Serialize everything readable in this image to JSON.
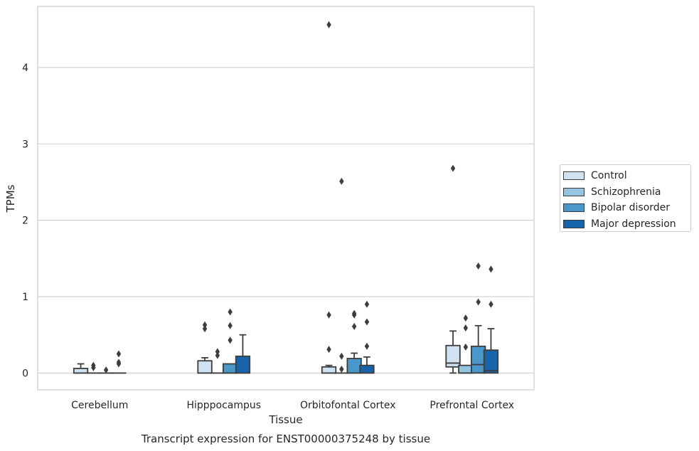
{
  "chart_data": {
    "type": "box",
    "title": "Transcript expression for ENST00000375248 by tissue",
    "xlabel": "Tissue",
    "ylabel": "TPMs",
    "categories": [
      "Cerebellum",
      "Hipppocampus",
      "Orbitofontal Cortex",
      "Prefrontal Cortex"
    ],
    "ylim": [
      -0.22,
      4.8
    ],
    "yticks": [
      0,
      1,
      2,
      3,
      4
    ],
    "grid": "horizontal",
    "legend_position": "right",
    "series": [
      {
        "name": "Control",
        "color": "#d0e1f2",
        "boxes": [
          {
            "q1": 0.0,
            "median": 0.0,
            "q3": 0.06,
            "whisker_low": 0.0,
            "whisker_high": 0.12,
            "outliers": []
          },
          {
            "q1": 0.0,
            "median": 0.0,
            "q3": 0.16,
            "whisker_low": 0.0,
            "whisker_high": 0.2,
            "outliers": [
              0.58,
              0.63
            ]
          },
          {
            "q1": 0.0,
            "median": 0.0,
            "q3": 0.08,
            "whisker_low": 0.0,
            "whisker_high": 0.1,
            "outliers": [
              0.31,
              0.76,
              4.56
            ]
          },
          {
            "q1": 0.08,
            "median": 0.13,
            "q3": 0.36,
            "whisker_low": 0.0,
            "whisker_high": 0.55,
            "outliers": [
              2.68
            ]
          }
        ]
      },
      {
        "name": "Schizophrenia",
        "color": "#94c4df",
        "boxes": [
          {
            "q1": 0.0,
            "median": 0.0,
            "q3": 0.0,
            "whisker_low": 0.0,
            "whisker_high": 0.0,
            "outliers": [
              0.07,
              0.1
            ]
          },
          {
            "q1": 0.0,
            "median": 0.0,
            "q3": 0.0,
            "whisker_low": 0.0,
            "whisker_high": 0.0,
            "outliers": [
              0.23,
              0.28
            ]
          },
          {
            "q1": 0.0,
            "median": 0.0,
            "q3": 0.0,
            "whisker_low": 0.0,
            "whisker_high": 0.0,
            "outliers": [
              0.05,
              0.22,
              2.51
            ]
          },
          {
            "q1": 0.0,
            "median": 0.0,
            "q3": 0.1,
            "whisker_low": 0.0,
            "whisker_high": 0.1,
            "outliers": [
              0.34,
              0.59,
              0.72
            ]
          }
        ]
      },
      {
        "name": "Bipolar disorder",
        "color": "#4a98c9",
        "boxes": [
          {
            "q1": 0.0,
            "median": 0.0,
            "q3": 0.0,
            "whisker_low": 0.0,
            "whisker_high": 0.0,
            "outliers": [
              0.04
            ]
          },
          {
            "q1": 0.0,
            "median": 0.0,
            "q3": 0.12,
            "whisker_low": 0.0,
            "whisker_high": 0.12,
            "outliers": [
              0.43,
              0.62,
              0.8
            ]
          },
          {
            "q1": 0.0,
            "median": 0.0,
            "q3": 0.19,
            "whisker_low": 0.0,
            "whisker_high": 0.26,
            "outliers": [
              0.61,
              0.76,
              0.78
            ]
          },
          {
            "q1": 0.0,
            "median": 0.11,
            "q3": 0.35,
            "whisker_low": 0.0,
            "whisker_high": 0.62,
            "outliers": [
              0.93,
              1.4
            ]
          }
        ]
      },
      {
        "name": "Major depression",
        "color": "#1764ab",
        "boxes": [
          {
            "q1": 0.0,
            "median": 0.0,
            "q3": 0.0,
            "whisker_low": 0.0,
            "whisker_high": 0.0,
            "outliers": [
              0.12,
              0.14,
              0.25
            ]
          },
          {
            "q1": 0.0,
            "median": 0.0,
            "q3": 0.22,
            "whisker_low": 0.0,
            "whisker_high": 0.5,
            "outliers": []
          },
          {
            "q1": 0.0,
            "median": 0.0,
            "q3": 0.1,
            "whisker_low": 0.0,
            "whisker_high": 0.21,
            "outliers": [
              0.35,
              0.67,
              0.9
            ]
          },
          {
            "q1": 0.0,
            "median": 0.03,
            "q3": 0.3,
            "whisker_low": 0.0,
            "whisker_high": 0.58,
            "outliers": [
              0.9,
              1.36
            ]
          }
        ]
      }
    ]
  }
}
